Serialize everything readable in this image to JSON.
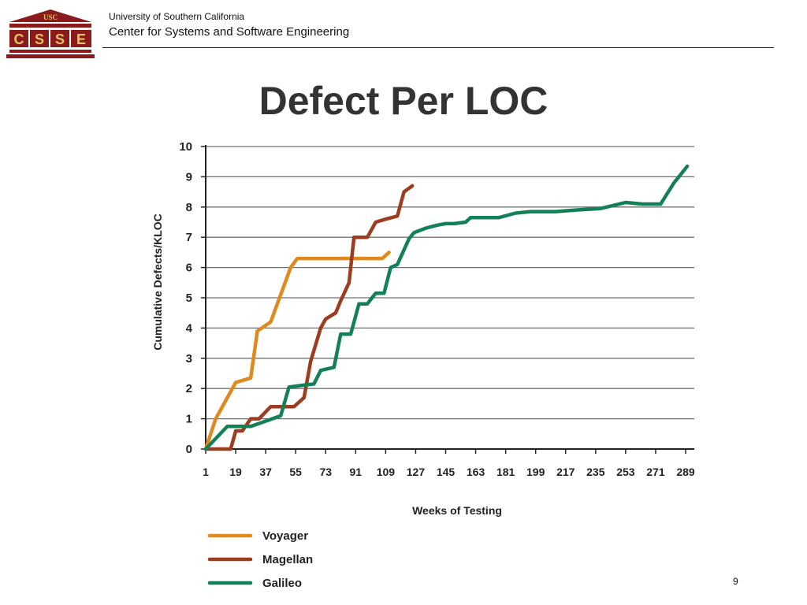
{
  "header": {
    "university": "University of Southern California",
    "center": "Center for Systems and Software Engineering",
    "logo": {
      "top_text": "USC",
      "letters": [
        "C",
        "S",
        "S",
        "E"
      ]
    }
  },
  "slide": {
    "title": "Defect Per LOC",
    "page_number": "9"
  },
  "colors": {
    "voyager": "#df8a1c",
    "magellan": "#9b3d1f",
    "galileo": "#138058",
    "grid": "#707070",
    "logo_maroon": "#8b1a1a",
    "logo_gold": "#e8c36a"
  },
  "chart_data": {
    "type": "line",
    "title": "",
    "xlabel": "Weeks of Testing",
    "ylabel": "Cumulative Defects/KLOC",
    "xlim": [
      1,
      289
    ],
    "ylim": [
      0,
      10
    ],
    "x_ticks": [
      1,
      19,
      37,
      55,
      73,
      91,
      109,
      127,
      145,
      163,
      181,
      199,
      217,
      235,
      253,
      271,
      289
    ],
    "y_ticks": [
      0,
      1,
      2,
      3,
      4,
      5,
      6,
      7,
      8,
      9,
      10
    ],
    "grid": "horizontal",
    "legend_position": "bottom-left",
    "series": [
      {
        "name": "Voyager",
        "color": "#df8a1c",
        "points": [
          [
            1,
            0
          ],
          [
            7,
            1
          ],
          [
            19,
            2.2
          ],
          [
            28,
            2.35
          ],
          [
            32,
            3.9
          ],
          [
            40,
            4.2
          ],
          [
            44,
            4.8
          ],
          [
            52,
            6
          ],
          [
            56,
            6.3
          ],
          [
            64,
            6.3
          ],
          [
            80,
            6.3
          ],
          [
            100,
            6.3
          ],
          [
            107,
            6.3
          ],
          [
            111,
            6.5
          ]
        ]
      },
      {
        "name": "Magellan",
        "color": "#9b3d1f",
        "points": [
          [
            1,
            0
          ],
          [
            7,
            0
          ],
          [
            16,
            0
          ],
          [
            19,
            0.6
          ],
          [
            23,
            0.6
          ],
          [
            28,
            1
          ],
          [
            33,
            1
          ],
          [
            40,
            1.4
          ],
          [
            48,
            1.4
          ],
          [
            54,
            1.4
          ],
          [
            60,
            1.7
          ],
          [
            64,
            2.9
          ],
          [
            70,
            4
          ],
          [
            73,
            4.3
          ],
          [
            79,
            4.5
          ],
          [
            82,
            4.9
          ],
          [
            87,
            5.5
          ],
          [
            90,
            7
          ],
          [
            98,
            7
          ],
          [
            103,
            7.5
          ],
          [
            109,
            7.6
          ],
          [
            116,
            7.7
          ],
          [
            120,
            8.5
          ],
          [
            125,
            8.7
          ]
        ]
      },
      {
        "name": "Galileo",
        "color": "#138058",
        "points": [
          [
            1,
            0
          ],
          [
            14,
            0.75
          ],
          [
            19,
            0.75
          ],
          [
            28,
            0.75
          ],
          [
            36,
            0.9
          ],
          [
            46,
            1.1
          ],
          [
            51,
            2.05
          ],
          [
            58,
            2.1
          ],
          [
            66,
            2.15
          ],
          [
            70,
            2.6
          ],
          [
            78,
            2.7
          ],
          [
            82,
            3.8
          ],
          [
            88,
            3.8
          ],
          [
            93,
            4.8
          ],
          [
            98,
            4.8
          ],
          [
            103,
            5.15
          ],
          [
            108,
            5.15
          ],
          [
            112,
            6
          ],
          [
            116,
            6.1
          ],
          [
            123,
            6.95
          ],
          [
            126,
            7.15
          ],
          [
            133,
            7.3
          ],
          [
            140,
            7.4
          ],
          [
            145,
            7.45
          ],
          [
            150,
            7.45
          ],
          [
            157,
            7.5
          ],
          [
            160,
            7.65
          ],
          [
            177,
            7.65
          ],
          [
            187,
            7.8
          ],
          [
            196,
            7.85
          ],
          [
            211,
            7.85
          ],
          [
            223,
            7.9
          ],
          [
            238,
            7.95
          ],
          [
            253,
            8.15
          ],
          [
            263,
            8.1
          ],
          [
            274,
            8.1
          ],
          [
            282,
            8.8
          ],
          [
            290,
            9.35
          ]
        ]
      }
    ]
  }
}
